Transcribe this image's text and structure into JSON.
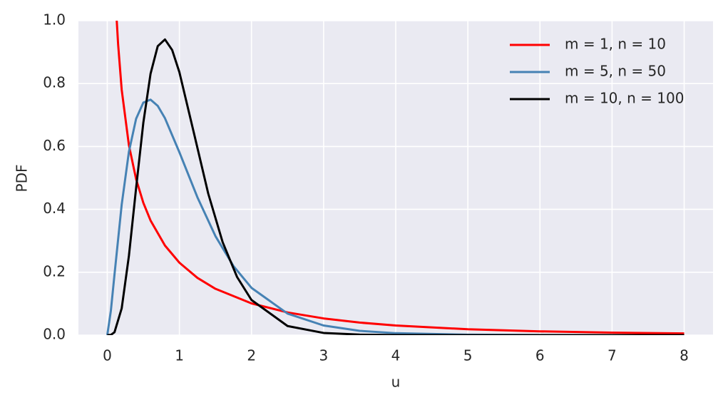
{
  "chart_data": {
    "type": "line",
    "xlabel": "u",
    "ylabel": "PDF",
    "xlim": [
      -0.4,
      8.4
    ],
    "ylim": [
      0,
      1
    ],
    "xticks": [
      0,
      1,
      2,
      3,
      4,
      5,
      6,
      7,
      8
    ],
    "yticks": [
      {
        "value": 0,
        "label": "0.0"
      },
      {
        "value": 0.2,
        "label": "0.2"
      },
      {
        "value": 0.4,
        "label": "0.4"
      },
      {
        "value": 0.6,
        "label": "0.6"
      },
      {
        "value": 0.8,
        "label": "0.8"
      },
      {
        "value": 1,
        "label": "1.0"
      }
    ],
    "grid": true,
    "legend": "upper right",
    "series": [
      {
        "name": "m = 1, n = 10",
        "color": "#ff0000",
        "x": [
          0.13,
          0.15,
          0.2,
          0.3,
          0.4,
          0.5,
          0.6,
          0.8,
          1,
          1.25,
          1.5,
          2,
          2.5,
          3,
          3.5,
          4,
          5,
          6,
          7,
          8
        ],
        "values": [
          1.005,
          0.9257,
          0.7803,
          0.6039,
          0.4959,
          0.4208,
          0.3646,
          0.2849,
          0.2304,
          0.1821,
          0.1473,
          0.1009,
          0.0721,
          0.0531,
          0.0399,
          0.0306,
          0.0187,
          0.012,
          0.0079,
          0.0054
        ]
      },
      {
        "name": "m = 5, n = 50",
        "color": "#4682b4",
        "x": [
          0,
          0.05,
          0.1,
          0.2,
          0.3,
          0.4,
          0.5,
          0.6,
          0.7,
          0.8,
          1,
          1.25,
          1.5,
          1.75,
          2,
          2.5,
          3,
          3.5,
          4,
          5,
          6,
          7,
          8
        ],
        "values": [
          0,
          0.078,
          0.1924,
          0.4151,
          0.5831,
          0.6883,
          0.7394,
          0.7488,
          0.729,
          0.6898,
          0.5816,
          0.4383,
          0.3148,
          0.2196,
          0.1503,
          0.0684,
          0.0306,
          0.0137,
          0.0061,
          0.0013,
          0.0003,
          0.0001,
          0
        ]
      },
      {
        "name": "m = 10, n = 100",
        "color": "#000000",
        "x": [
          0,
          0.05,
          0.1,
          0.2,
          0.3,
          0.4,
          0.5,
          0.6,
          0.7,
          0.8,
          0.9,
          1,
          1.2,
          1.4,
          1.6,
          1.8,
          2,
          2.5,
          3,
          3.5,
          4,
          5,
          6,
          7,
          8
        ],
        "values": [
          0,
          0.0008,
          0.0092,
          0.0851,
          0.2521,
          0.4682,
          0.6754,
          0.8312,
          0.9191,
          0.9403,
          0.9066,
          0.8362,
          0.644,
          0.4501,
          0.2954,
          0.1848,
          0.1117,
          0.0289,
          0.0069,
          0.0016,
          0.0004,
          0,
          0,
          0,
          0
        ]
      }
    ]
  }
}
